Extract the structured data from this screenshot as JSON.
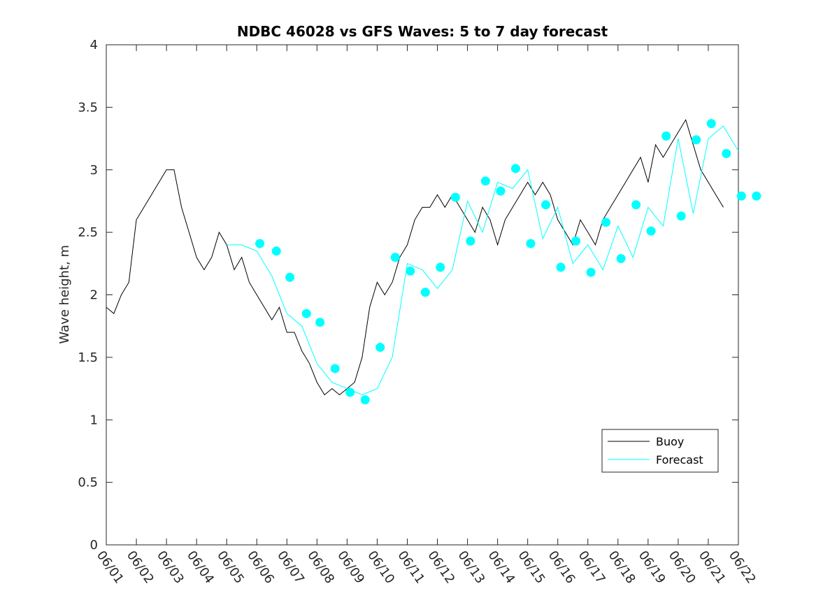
{
  "chart_data": {
    "type": "line",
    "title": "NDBC 46028 vs GFS Waves: 5 to 7 day forecast",
    "xlabel": "",
    "ylabel": "Wave height, m",
    "ylim": [
      0,
      4
    ],
    "xlim_days": [
      0,
      21
    ],
    "yticks": [
      "0",
      "0.5",
      "1",
      "1.5",
      "2",
      "2.5",
      "3",
      "3.5",
      "4"
    ],
    "xtick_labels": [
      "06/01",
      "06/02",
      "06/03",
      "06/04",
      "06/05",
      "06/06",
      "06/07",
      "06/08",
      "06/09",
      "06/10",
      "06/11",
      "06/12",
      "06/13",
      "06/14",
      "06/15",
      "06/16",
      "06/17",
      "06/18",
      "06/19",
      "06/20",
      "06/21",
      "06/22"
    ],
    "grid": false,
    "legend_position": "lower-right",
    "colors": {
      "buoy": "#000000",
      "forecast": "#00ffff",
      "axis": "#262626"
    },
    "series": [
      {
        "name": "Buoy",
        "color": "#000000",
        "x": [
          0,
          0.25,
          0.5,
          0.75,
          1.0,
          1.25,
          1.5,
          1.75,
          2.0,
          2.25,
          2.5,
          2.75,
          3.0,
          3.25,
          3.5,
          3.75,
          4.0,
          4.25,
          4.5,
          4.75,
          5.0,
          5.25,
          5.5,
          5.75,
          6.0,
          6.25,
          6.5,
          6.75,
          7.0,
          7.25,
          7.5,
          7.75,
          8.0,
          8.25,
          8.5,
          8.75,
          9.0,
          9.25,
          9.5,
          9.75,
          10.0,
          10.25,
          10.5,
          10.75,
          11.0,
          11.25,
          11.5,
          11.75,
          12.0,
          12.25,
          12.5,
          12.75,
          13.0,
          13.25,
          13.5,
          13.75,
          14.0,
          14.25,
          14.5,
          14.75,
          15.0,
          15.25,
          15.5,
          15.75,
          16.0,
          16.25,
          16.5,
          16.75,
          17.0,
          17.25,
          17.5,
          17.75,
          18.0,
          18.25,
          18.5,
          18.75,
          19.0,
          19.25,
          19.5,
          19.75,
          20.0,
          20.25,
          20.5
        ],
        "y": [
          1.9,
          1.85,
          2.0,
          2.1,
          2.6,
          2.7,
          2.8,
          2.9,
          3.0,
          3.0,
          2.7,
          2.5,
          2.3,
          2.2,
          2.3,
          2.5,
          2.4,
          2.2,
          2.3,
          2.1,
          2.0,
          1.9,
          1.8,
          1.9,
          1.7,
          1.7,
          1.55,
          1.45,
          1.3,
          1.2,
          1.25,
          1.2,
          1.25,
          1.3,
          1.5,
          1.9,
          2.1,
          2.0,
          2.1,
          2.3,
          2.4,
          2.6,
          2.7,
          2.7,
          2.8,
          2.7,
          2.8,
          2.7,
          2.6,
          2.5,
          2.7,
          2.6,
          2.4,
          2.6,
          2.7,
          2.8,
          2.9,
          2.8,
          2.9,
          2.8,
          2.6,
          2.5,
          2.4,
          2.6,
          2.5,
          2.4,
          2.6,
          2.7,
          2.8,
          2.9,
          3.0,
          3.1,
          2.9,
          3.2,
          3.1,
          3.2,
          3.3,
          3.4,
          3.2,
          3.0,
          2.9,
          2.8,
          2.7
        ]
      },
      {
        "name": "Forecast",
        "color": "#00ffff",
        "x": [
          4.0,
          4.5,
          5.0,
          5.5,
          6.0,
          6.5,
          7.0,
          7.5,
          8.0,
          8.5,
          9.0,
          9.5,
          10.0,
          10.5,
          11.0,
          11.5,
          12.0,
          12.5,
          13.0,
          13.5,
          14.0,
          14.5,
          15.0,
          15.5,
          16.0,
          16.5,
          17.0,
          17.5,
          18.0,
          18.5,
          19.0,
          19.5,
          20.0,
          20.5,
          21.0
        ],
        "y": [
          2.4,
          2.4,
          2.35,
          2.15,
          1.85,
          1.75,
          1.45,
          1.3,
          1.25,
          1.2,
          1.25,
          1.5,
          2.25,
          2.2,
          2.05,
          2.2,
          2.75,
          2.5,
          2.9,
          2.85,
          3.0,
          2.45,
          2.7,
          2.25,
          2.4,
          2.2,
          2.55,
          2.3,
          2.7,
          2.55,
          3.25,
          2.65,
          3.25,
          3.35,
          3.15
        ]
      }
    ],
    "forecast_markers": {
      "x": [
        5.1,
        5.65,
        6.1,
        6.65,
        7.1,
        7.6,
        8.1,
        8.6,
        9.1,
        9.6,
        10.1,
        10.6,
        11.1,
        11.6,
        12.1,
        12.6,
        13.1,
        13.6,
        14.1,
        14.6,
        15.1,
        15.6,
        16.1,
        16.6,
        17.1,
        17.6,
        18.1,
        18.6,
        19.1,
        19.6,
        20.1,
        20.6,
        21.1,
        21.6
      ],
      "y": [
        2.41,
        2.35,
        2.14,
        1.85,
        1.78,
        1.41,
        1.22,
        1.16,
        1.58,
        2.3,
        2.19,
        2.02,
        2.22,
        2.78,
        2.43,
        2.91,
        2.83,
        3.01,
        2.41,
        2.72,
        2.22,
        2.43,
        2.18,
        2.58,
        2.29,
        2.72,
        2.51,
        3.27,
        2.63,
        3.24,
        3.37,
        3.13,
        2.79,
        2.79
      ]
    },
    "legend_entries": [
      "Buoy",
      "Forecast"
    ]
  }
}
